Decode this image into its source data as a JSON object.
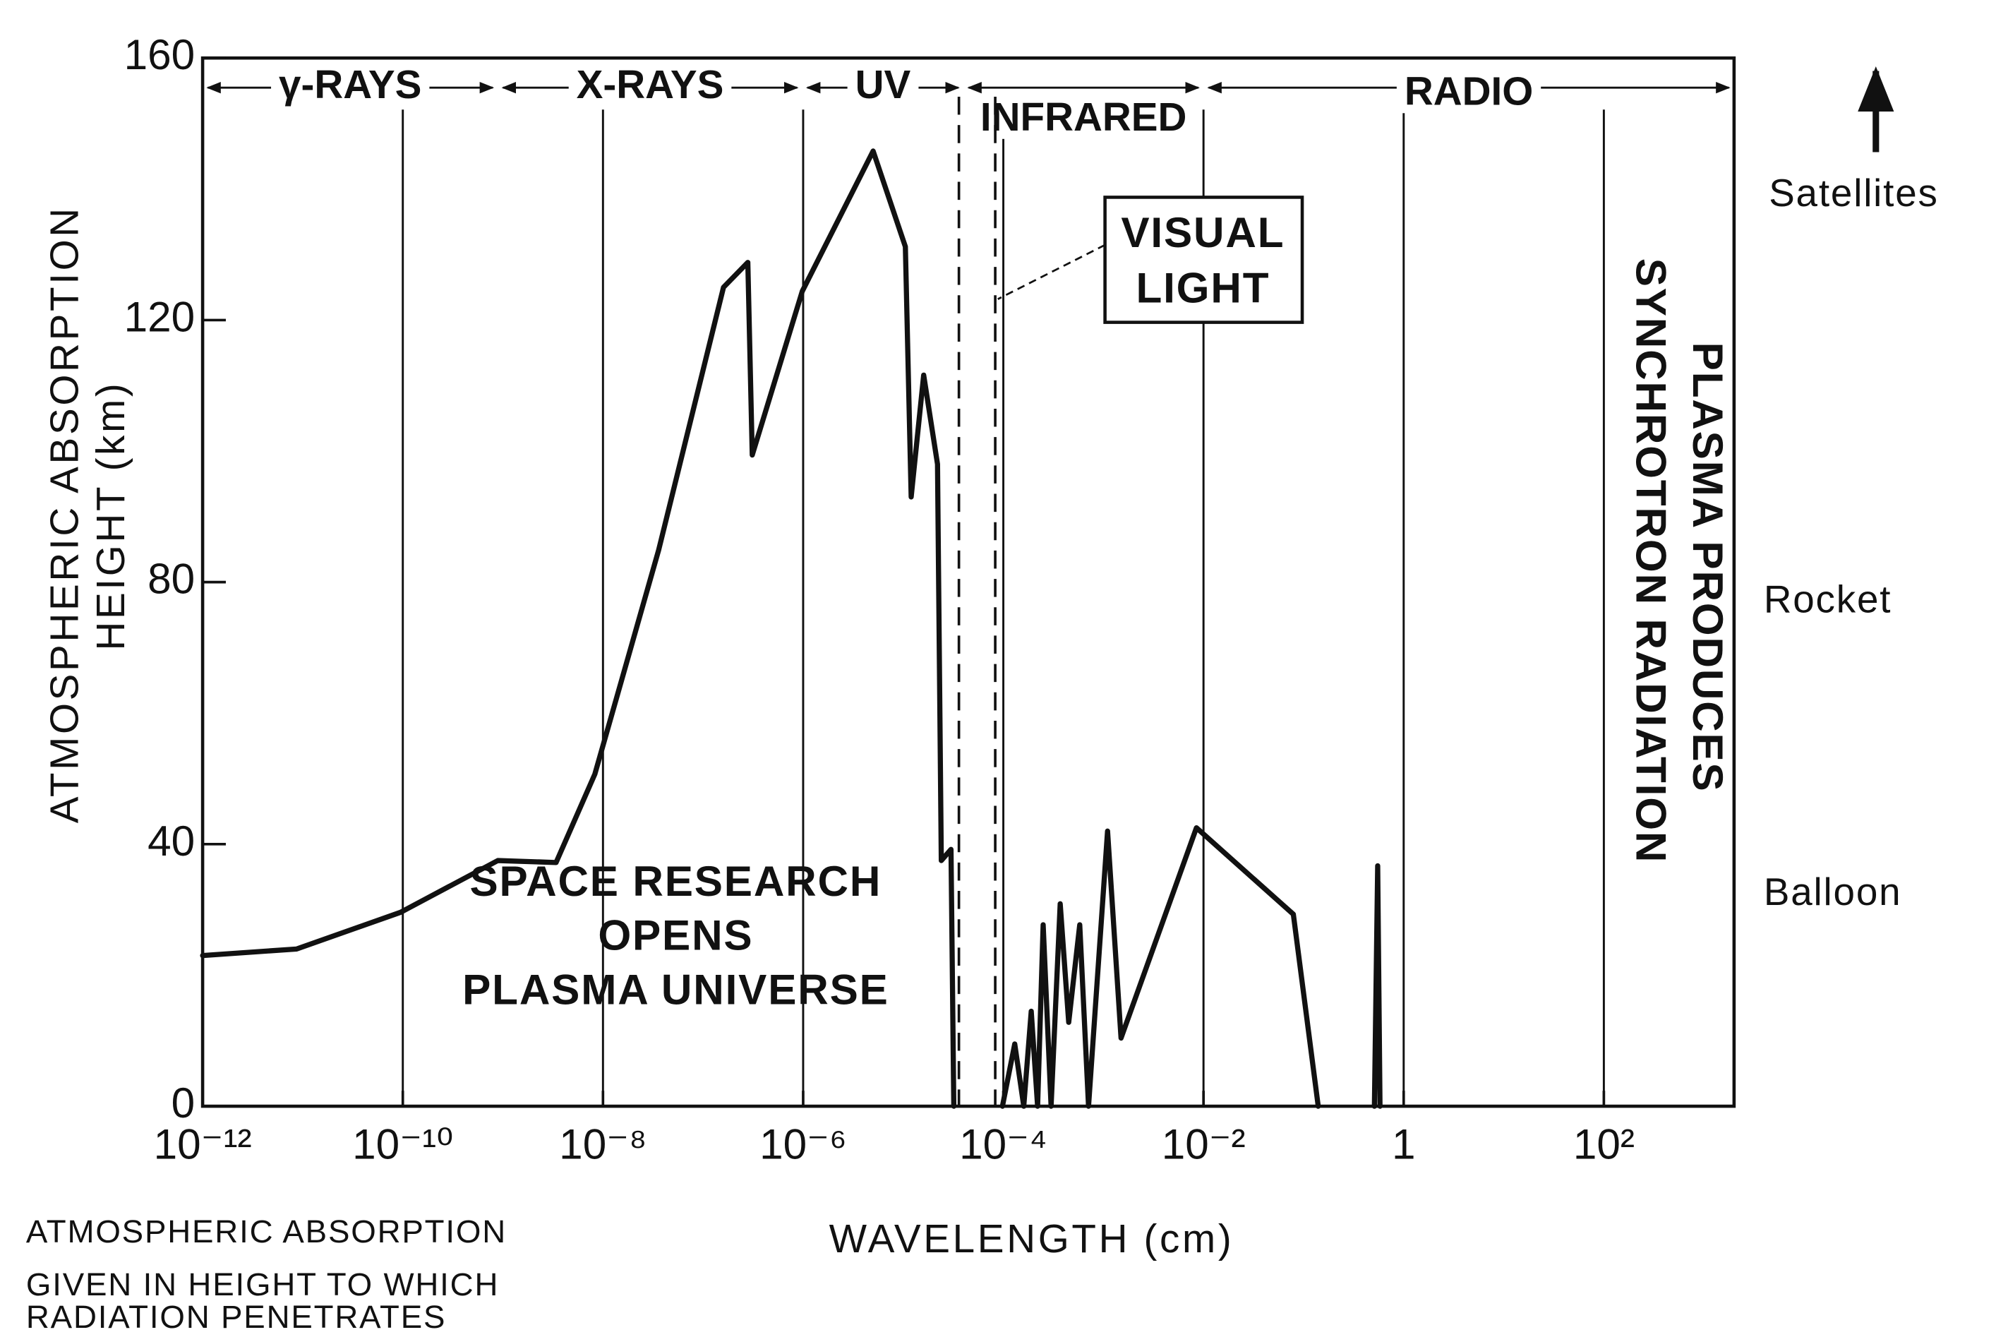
{
  "chart_data": {
    "type": "line",
    "x_label": "WAVELENGTH (cm)",
    "y_label": [
      "ATMOSPHERIC ABSORPTION",
      "HEIGHT (km)"
    ],
    "xscale": "log",
    "xlim": [
      1e-12,
      2000
    ],
    "ylim": [
      0,
      160
    ],
    "xticks": [
      {
        "value": 1e-12,
        "label": "10⁻¹²"
      },
      {
        "value": 1e-10,
        "label": "10⁻¹⁰"
      },
      {
        "value": 1e-08,
        "label": "10⁻⁸"
      },
      {
        "value": 1e-06,
        "label": "10⁻⁶"
      },
      {
        "value": 0.0001,
        "label": "10⁻⁴"
      },
      {
        "value": 0.01,
        "label": "10⁻²"
      },
      1,
      {
        "value": 100,
        "label": "10²"
      }
    ],
    "yticks": [
      0,
      40,
      80,
      120,
      160
    ],
    "grid": true,
    "color": "#111111",
    "x": [
      1e-12,
      8.7e-12,
      9.5e-11,
      8.9e-10,
      3.4e-09,
      8.3e-09,
      3.6e-08,
      1.6e-07,
      2.8e-07,
      3.1e-07,
      9.8e-07,
      5e-06,
      1.05e-05,
      1.2e-05,
      1.6e-05,
      2.2e-05,
      2.4e-05,
      3e-05,
      3.2e-05,
      null,
      9.8e-05,
      0.00013,
      0.00016,
      0.00019,
      0.00022,
      0.00025,
      0.0003,
      0.00037,
      0.00045,
      0.00058,
      0.00071,
      0.0011,
      0.0015,
      0.0085,
      0.079,
      0.14,
      null,
      0.51,
      0.55,
      0.58
    ],
    "values": [
      23,
      24,
      29.6,
      37.5,
      37.2,
      50.7,
      84.9,
      125,
      128.8,
      99.4,
      124.4,
      145.8,
      131.2,
      93,
      111.6,
      98,
      37.5,
      39.2,
      0,
      null,
      0,
      9.5,
      0,
      14.5,
      0,
      27.7,
      0,
      30.9,
      12.8,
      27.7,
      0,
      42,
      10.4,
      42.5,
      29.3,
      0,
      null,
      0,
      36.7,
      0
    ],
    "regions": [
      {
        "label": "γ-RAYS",
        "range": [
          1e-12,
          8.9e-10
        ]
      },
      {
        "label": "X-RAYS",
        "range": [
          8.9e-10,
          9.8e-07
        ]
      },
      {
        "label": "UV",
        "range": [
          9.8e-07,
          4e-05
        ]
      },
      {
        "label": "INFRARED",
        "range": [
          4e-05,
          0.01
        ]
      },
      {
        "label": "RADIO",
        "range": [
          0.01,
          2000
        ]
      }
    ],
    "visual_light": {
      "label": [
        "VISUAL",
        "LIGHT"
      ],
      "range": [
        3.6e-05,
        8.3e-05
      ]
    },
    "annotation": [
      "SPACE RESEARCH",
      "OPENS",
      "PLASMA UNIVERSE"
    ],
    "side_note": [
      "PLASMA PRODUCES",
      "SYNCHROTRON RADIATION"
    ],
    "altitude_labels": [
      "Satellites",
      "Rocket",
      "Balloon"
    ],
    "footnote": [
      "ATMOSPHERIC ABSORPTION",
      "GIVEN IN HEIGHT TO WHICH",
      "RADIATION PENETRATES"
    ]
  }
}
